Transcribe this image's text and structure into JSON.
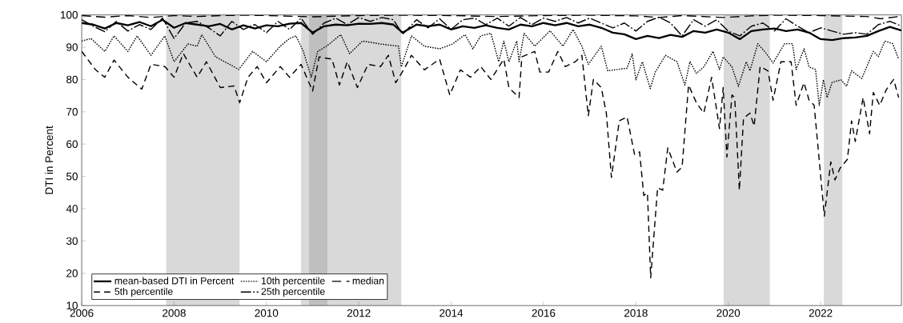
{
  "chart_data": {
    "type": "line",
    "ylabel": "DTI in Percent",
    "xlim": [
      2006,
      2023.75
    ],
    "xticks": [
      2006,
      2008,
      2010,
      2012,
      2014,
      2016,
      2018,
      2020,
      2022
    ],
    "ylim": [
      10,
      100
    ],
    "yticks": [
      10,
      20,
      30,
      40,
      50,
      60,
      70,
      80,
      90,
      100
    ],
    "grid": false,
    "legend": "bottom left",
    "marker": "none",
    "bands": [
      {
        "axis": "x",
        "from": 2007.83,
        "to": 2009.42,
        "color": "#d9d9d9"
      },
      {
        "axis": "x",
        "from": 2010.75,
        "to": 2010.92,
        "color": "#d9d9d9"
      },
      {
        "axis": "x",
        "from": 2010.92,
        "to": 2011.33,
        "color": "#bfbfbf"
      },
      {
        "axis": "x",
        "from": 2011.33,
        "to": 2012.92,
        "color": "#d9d9d9"
      },
      {
        "axis": "x",
        "from": 2019.9,
        "to": 2020.9,
        "color": "#d9d9d9"
      },
      {
        "axis": "x",
        "from": 2022.07,
        "to": 2022.47,
        "color": "#d9d9d9"
      }
    ],
    "series": [
      {
        "name": "mean-based DTI in Percent",
        "color": "#000000",
        "line_style": "solid",
        "x": [
          2006.0,
          2006.25,
          2006.5,
          2006.75,
          2007.0,
          2007.25,
          2007.5,
          2007.75,
          2008.0,
          2008.25,
          2008.5,
          2008.75,
          2009.0,
          2009.25,
          2009.5,
          2009.75,
          2010.0,
          2010.25,
          2010.5,
          2010.75,
          2011.0,
          2011.25,
          2011.5,
          2011.75,
          2012.0,
          2012.25,
          2012.5,
          2012.75,
          2012.95,
          2013.25,
          2013.5,
          2013.75,
          2014.0,
          2014.25,
          2014.5,
          2014.75,
          2015.0,
          2015.25,
          2015.5,
          2015.75,
          2016.0,
          2016.25,
          2016.5,
          2016.75,
          2017.0,
          2017.25,
          2017.5,
          2017.75,
          2018.0,
          2018.25,
          2018.5,
          2018.75,
          2019.0,
          2019.25,
          2019.5,
          2019.75,
          2020.0,
          2020.25,
          2020.5,
          2020.75,
          2021.0,
          2021.25,
          2021.5,
          2021.75,
          2022.0,
          2022.25,
          2022.5,
          2022.75,
          2023.0,
          2023.25,
          2023.5,
          2023.75
        ],
        "values": [
          97.5,
          97,
          95.8,
          97.5,
          96.8,
          97.8,
          96.5,
          98.5,
          96,
          97.5,
          97,
          96.5,
          97.2,
          95.5,
          96.8,
          95.8,
          96.8,
          96.5,
          97.3,
          97.5,
          94.5,
          96.5,
          97,
          96.8,
          97.3,
          97.2,
          97.5,
          97,
          94.5,
          97,
          96.5,
          97,
          95.5,
          96.5,
          96,
          96.8,
          96,
          95.5,
          97,
          96.5,
          97.5,
          96.8,
          97.5,
          96.5,
          97,
          96,
          94.5,
          94,
          92.5,
          93.5,
          92.8,
          93.8,
          93.2,
          95,
          94.5,
          95.5,
          94.5,
          92.5,
          95,
          95.5,
          95.8,
          95,
          95.5,
          94.5,
          92.5,
          92.2,
          92.8,
          93,
          93.5,
          95,
          96.3,
          95.2
        ]
      },
      {
        "name": "5th percentile",
        "color": "#000000",
        "line_style": "dashed",
        "x": [
          2006.0,
          2006.3,
          2006.5,
          2006.7,
          2007.0,
          2007.3,
          2007.5,
          2007.8,
          2008.0,
          2008.2,
          2008.5,
          2008.7,
          2009.0,
          2009.3,
          2009.42,
          2009.6,
          2009.8,
          2010.0,
          2010.3,
          2010.5,
          2010.75,
          2011.0,
          2011.14,
          2011.42,
          2011.58,
          2011.75,
          2011.97,
          2012.2,
          2012.47,
          2012.64,
          2012.8,
          2012.97,
          2013.14,
          2013.42,
          2013.75,
          2013.97,
          2014.2,
          2014.42,
          2014.64,
          2014.86,
          2015.14,
          2015.25,
          2015.47,
          2015.53,
          2015.81,
          2015.92,
          2016.11,
          2016.31,
          2016.47,
          2016.69,
          2016.83,
          2016.97,
          2017.08,
          2017.25,
          2017.36,
          2017.47,
          2017.64,
          2017.81,
          2017.97,
          2018.08,
          2018.17,
          2018.25,
          2018.32,
          2018.47,
          2018.58,
          2018.69,
          2018.89,
          2019.0,
          2019.14,
          2019.31,
          2019.47,
          2019.64,
          2019.81,
          2019.89,
          2019.97,
          2020.08,
          2020.14,
          2020.24,
          2020.33,
          2020.47,
          2020.56,
          2020.69,
          2020.86,
          2020.97,
          2021.14,
          2021.36,
          2021.47,
          2021.64,
          2021.75,
          2021.86,
          2022.08,
          2022.22,
          2022.31,
          2022.42,
          2022.58,
          2022.67,
          2022.75,
          2022.92,
          2023.06,
          2023.14,
          2023.28,
          2023.42,
          2023.58,
          2023.69
        ],
        "values": [
          88.7,
          83,
          80.7,
          86,
          80.7,
          77,
          84.7,
          84,
          80.7,
          88,
          80.7,
          85.5,
          77.5,
          78,
          72.8,
          80.7,
          84,
          79,
          84,
          80.7,
          84.7,
          76.4,
          87,
          86.3,
          78.3,
          85.5,
          77.5,
          84.7,
          84,
          87.5,
          79,
          83,
          87.5,
          83,
          86.3,
          75.2,
          83,
          80.7,
          84,
          80,
          86.3,
          77.5,
          74.4,
          87,
          88.7,
          82.3,
          82.3,
          88.7,
          84,
          85.5,
          87.5,
          68.8,
          80,
          77.5,
          69.6,
          49.7,
          67.2,
          68.4,
          56.8,
          57.6,
          44.1,
          44.9,
          18.6,
          46.5,
          45.7,
          58.8,
          51.3,
          52.9,
          78.3,
          72.8,
          69.6,
          80.7,
          64.8,
          77.5,
          56,
          75.2,
          74.4,
          45.7,
          68,
          69.6,
          65.6,
          84,
          82.7,
          73.6,
          85.5,
          85.5,
          72,
          79,
          73.6,
          72,
          37.7,
          54.5,
          48.9,
          52.5,
          55.3,
          67.2,
          60.8,
          74.4,
          63.2,
          76,
          72,
          76.8,
          80,
          74.4
        ]
      },
      {
        "name": "10th percentile",
        "color": "#000000",
        "line_style": "dotted",
        "x": [
          2006.0,
          2006.2,
          2006.5,
          2006.7,
          2007.0,
          2007.2,
          2007.5,
          2007.8,
          2008.0,
          2008.3,
          2008.5,
          2008.6,
          2008.9,
          2009.2,
          2009.4,
          2009.7,
          2010.0,
          2010.3,
          2010.5,
          2010.64,
          2010.8,
          2010.97,
          2011.11,
          2011.3,
          2011.61,
          2011.8,
          2012.08,
          2012.47,
          2012.86,
          2012.92,
          2013.14,
          2013.42,
          2013.75,
          2014.03,
          2014.3,
          2014.47,
          2014.64,
          2014.86,
          2015.03,
          2015.14,
          2015.25,
          2015.42,
          2015.47,
          2015.58,
          2015.81,
          2016.14,
          2016.42,
          2016.64,
          2016.83,
          2016.97,
          2017.25,
          2017.39,
          2017.81,
          2017.92,
          2018.0,
          2018.14,
          2018.31,
          2018.42,
          2018.64,
          2018.89,
          2019.06,
          2019.17,
          2019.31,
          2019.47,
          2019.67,
          2019.81,
          2019.89,
          2020.08,
          2020.22,
          2020.39,
          2020.47,
          2020.64,
          2020.81,
          2020.97,
          2021.22,
          2021.39,
          2021.47,
          2021.64,
          2021.75,
          2021.89,
          2021.97,
          2022.06,
          2022.14,
          2022.25,
          2022.44,
          2022.56,
          2022.67,
          2022.89,
          2023.14,
          2023.25,
          2023.39,
          2023.56,
          2023.69
        ],
        "values": [
          91.9,
          92.7,
          88.7,
          93.5,
          88.7,
          93.5,
          87.5,
          93.5,
          85.5,
          91,
          90.3,
          93.9,
          87,
          84.7,
          83.1,
          88.7,
          85.5,
          90.3,
          92.7,
          93.5,
          88.7,
          80.7,
          88.7,
          90.3,
          93.9,
          88,
          91.9,
          91,
          90.3,
          83.9,
          93.5,
          90.3,
          89.5,
          91,
          93.9,
          89.5,
          93.5,
          94.3,
          85.5,
          91.9,
          85.5,
          91.9,
          85.5,
          94.3,
          90.3,
          95.1,
          90.3,
          95.5,
          90.3,
          84.7,
          90.3,
          82.7,
          83.5,
          87.9,
          79.9,
          85.5,
          77.2,
          82.3,
          87.5,
          85.5,
          78.3,
          85.5,
          81.9,
          83.9,
          88.7,
          83.1,
          87,
          83.9,
          77.9,
          85.5,
          82.7,
          91.1,
          88.3,
          85.1,
          91.1,
          91.1,
          83.1,
          89.5,
          83.9,
          83.1,
          72,
          79.9,
          74.4,
          79.1,
          79.9,
          77.9,
          82.7,
          80.3,
          88.7,
          87.1,
          91.9,
          91.1,
          86.3
        ]
      },
      {
        "name": "25th percentile",
        "color": "#000000",
        "line_style": "dashed",
        "x": [
          2006.0,
          2006.25,
          2006.5,
          2006.75,
          2007.0,
          2007.25,
          2007.5,
          2007.75,
          2008.0,
          2008.25,
          2008.5,
          2008.75,
          2009.0,
          2009.25,
          2009.5,
          2009.75,
          2010.0,
          2010.25,
          2010.5,
          2010.75,
          2011.0,
          2011.25,
          2011.5,
          2011.75,
          2012.0,
          2012.25,
          2012.5,
          2012.75,
          2012.95,
          2013.25,
          2013.5,
          2013.75,
          2014.0,
          2014.25,
          2014.5,
          2014.75,
          2015.0,
          2015.25,
          2015.5,
          2015.75,
          2016.0,
          2016.25,
          2016.5,
          2016.75,
          2017.0,
          2017.25,
          2017.5,
          2017.75,
          2018.0,
          2018.25,
          2018.5,
          2018.75,
          2019.0,
          2019.25,
          2019.5,
          2019.75,
          2020.0,
          2020.25,
          2020.5,
          2020.75,
          2021.0,
          2021.25,
          2021.5,
          2021.75,
          2022.0,
          2022.25,
          2022.5,
          2022.75,
          2023.0,
          2023.25,
          2023.5,
          2023.75
        ],
        "values": [
          98.5,
          96.5,
          94.8,
          98,
          95,
          97,
          95.5,
          99,
          92.7,
          97.5,
          98,
          96,
          93.5,
          98,
          95.5,
          97,
          94.5,
          98,
          95.5,
          99,
          94,
          97.5,
          99,
          97,
          99.2,
          98,
          99.2,
          98.5,
          94,
          98.5,
          96,
          98.8,
          95.5,
          98.5,
          99,
          97,
          99,
          96.5,
          99.2,
          97,
          99,
          98,
          99.2,
          97.5,
          99,
          97.5,
          96,
          97.5,
          95,
          98,
          99.3,
          97.5,
          93.5,
          98.5,
          96.5,
          98.5,
          95,
          93.5,
          96.5,
          97.5,
          95,
          98.8,
          96.5,
          94.5,
          96,
          95,
          94,
          94.5,
          94,
          97,
          98,
          96.5
        ]
      },
      {
        "name": "median",
        "color": "#000000",
        "line_style": "dashed",
        "x": [
          2006.0,
          2006.5,
          2007.0,
          2007.5,
          2008.0,
          2008.5,
          2009.0,
          2009.5,
          2010.0,
          2011.0,
          2012.0,
          2013.0,
          2014.0,
          2015.0,
          2016.0,
          2017.0,
          2018.0,
          2018.5,
          2019.0,
          2019.9,
          2020.5,
          2021.0,
          2022.0,
          2023.0,
          2023.3,
          2023.75
        ],
        "values": [
          99.8,
          99.3,
          99.8,
          99.2,
          99.8,
          99.5,
          99.8,
          99.9,
          99.8,
          99.4,
          99.8,
          99.9,
          99.8,
          99.5,
          99.8,
          99.9,
          99.7,
          99.2,
          99.8,
          99.2,
          99.7,
          99.9,
          99.8,
          99.5,
          98.8,
          99.6
        ]
      }
    ]
  }
}
